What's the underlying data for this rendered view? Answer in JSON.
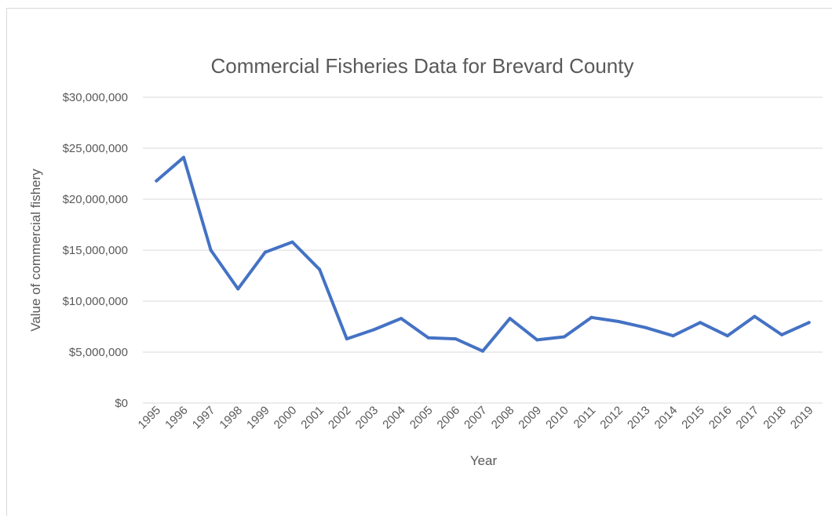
{
  "chart_data": {
    "type": "line",
    "title": "Commercial Fisheries Data for Brevard County",
    "xlabel": "Year",
    "ylabel": "Value of commercial fishery",
    "categories": [
      "1995",
      "1996",
      "1997",
      "1998",
      "1999",
      "2000",
      "2001",
      "2002",
      "2003",
      "2004",
      "2005",
      "2006",
      "2007",
      "2008",
      "2009",
      "2010",
      "2011",
      "2012",
      "2013",
      "2014",
      "2015",
      "2016",
      "2017",
      "2018",
      "2019"
    ],
    "series": [
      {
        "values": [
          21800000,
          24100000,
          15000000,
          11200000,
          14800000,
          15800000,
          13100000,
          6300000,
          7200000,
          8300000,
          6400000,
          6300000,
          5100000,
          8300000,
          6200000,
          6500000,
          8400000,
          8000000,
          7400000,
          6600000,
          7900000,
          6600000,
          8500000,
          6700000,
          7900000
        ],
        "color": "#4472C4"
      }
    ],
    "ylim": [
      0,
      30000000
    ],
    "yticks": [
      "$0",
      "$5,000,000",
      "$10,000,000",
      "$15,000,000",
      "$20,000,000",
      "$25,000,000",
      "$30,000,000"
    ],
    "grid": true,
    "legend": "none"
  }
}
